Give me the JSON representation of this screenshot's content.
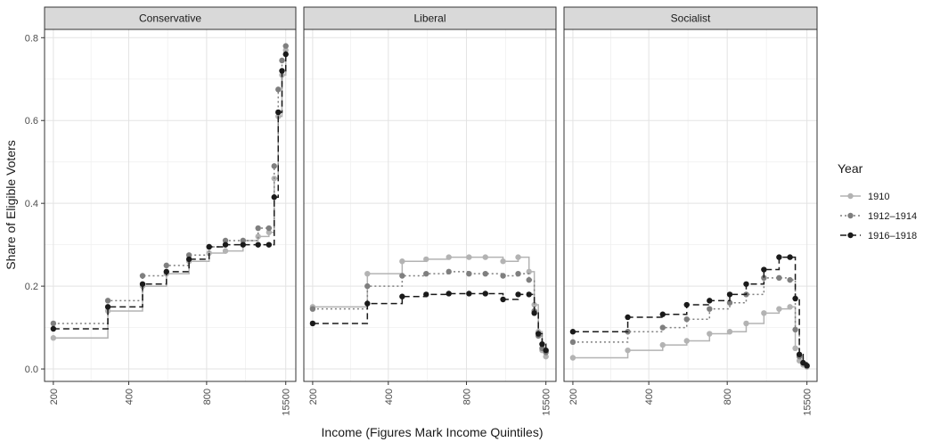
{
  "chart_data": {
    "type": "line",
    "step": true,
    "ylabel": "Share of Eligible Voters",
    "xlabel": "Income (Figures Mark Income Quintiles)",
    "x_tick_labels": [
      "200",
      "400",
      "800",
      "15500"
    ],
    "y_tick_labels": [
      "0.0",
      "0.2",
      "0.4",
      "0.6",
      "0.8"
    ],
    "ylim": [
      -0.03,
      0.82
    ],
    "y_ticks": [
      0.0,
      0.2,
      0.4,
      0.6,
      0.8
    ],
    "grid": true,
    "legend": {
      "title": "Year",
      "position": "right",
      "entries": [
        {
          "label": "1910",
          "color": "#b3b3b3",
          "dash": "solid"
        },
        {
          "label": "1912–1914",
          "color": "#7f7f7f",
          "dash": "dotted"
        },
        {
          "label": "1916–1918",
          "color": "#1a1a1a",
          "dash": "dashed"
        }
      ]
    },
    "panels": [
      {
        "title": "Conservative",
        "series": [
          {
            "name": "1910",
            "values": [
              0.075,
              0.14,
              0.2,
              0.23,
              0.26,
              0.28,
              0.285,
              0.31,
              0.32,
              0.33,
              0.46,
              0.61,
              0.71,
              0.77
            ]
          },
          {
            "name": "1912–1914",
            "values": [
              0.11,
              0.165,
              0.225,
              0.25,
              0.275,
              0.295,
              0.31,
              0.31,
              0.34,
              0.34,
              0.49,
              0.675,
              0.745,
              0.78
            ]
          },
          {
            "name": "1916–1918",
            "values": [
              0.097,
              0.15,
              0.205,
              0.235,
              0.265,
              0.295,
              0.3,
              0.3,
              0.3,
              0.3,
              0.415,
              0.62,
              0.72,
              0.76
            ]
          }
        ]
      },
      {
        "title": "Liberal",
        "series": [
          {
            "name": "1910",
            "values": [
              0.15,
              0.23,
              0.26,
              0.265,
              0.27,
              0.27,
              0.27,
              0.26,
              0.27,
              0.235,
              0.155,
              0.09,
              0.045,
              0.03
            ]
          },
          {
            "name": "1912–1914",
            "values": [
              0.145,
              0.2,
              0.225,
              0.23,
              0.235,
              0.23,
              0.23,
              0.225,
              0.23,
              0.215,
              0.14,
              0.08,
              0.05,
              0.04
            ]
          },
          {
            "name": "1916–1918",
            "values": [
              0.11,
              0.158,
              0.175,
              0.18,
              0.182,
              0.182,
              0.182,
              0.168,
              0.18,
              0.18,
              0.135,
              0.085,
              0.06,
              0.045
            ]
          }
        ]
      },
      {
        "title": "Socialist",
        "series": [
          {
            "name": "1910",
            "values": [
              0.027,
              0.045,
              0.058,
              0.068,
              0.085,
              0.09,
              0.11,
              0.135,
              0.145,
              0.15,
              0.05,
              0.02,
              0.01,
              0.005
            ]
          },
          {
            "name": "1912–1914",
            "values": [
              0.065,
              0.09,
              0.1,
              0.12,
              0.145,
              0.16,
              0.18,
              0.22,
              0.22,
              0.215,
              0.095,
              0.03,
              0.015,
              0.008
            ]
          },
          {
            "name": "1916–1918",
            "values": [
              0.09,
              0.125,
              0.132,
              0.155,
              0.165,
              0.18,
              0.205,
              0.24,
              0.27,
              0.27,
              0.17,
              0.035,
              0.015,
              0.008
            ]
          }
        ]
      }
    ]
  }
}
